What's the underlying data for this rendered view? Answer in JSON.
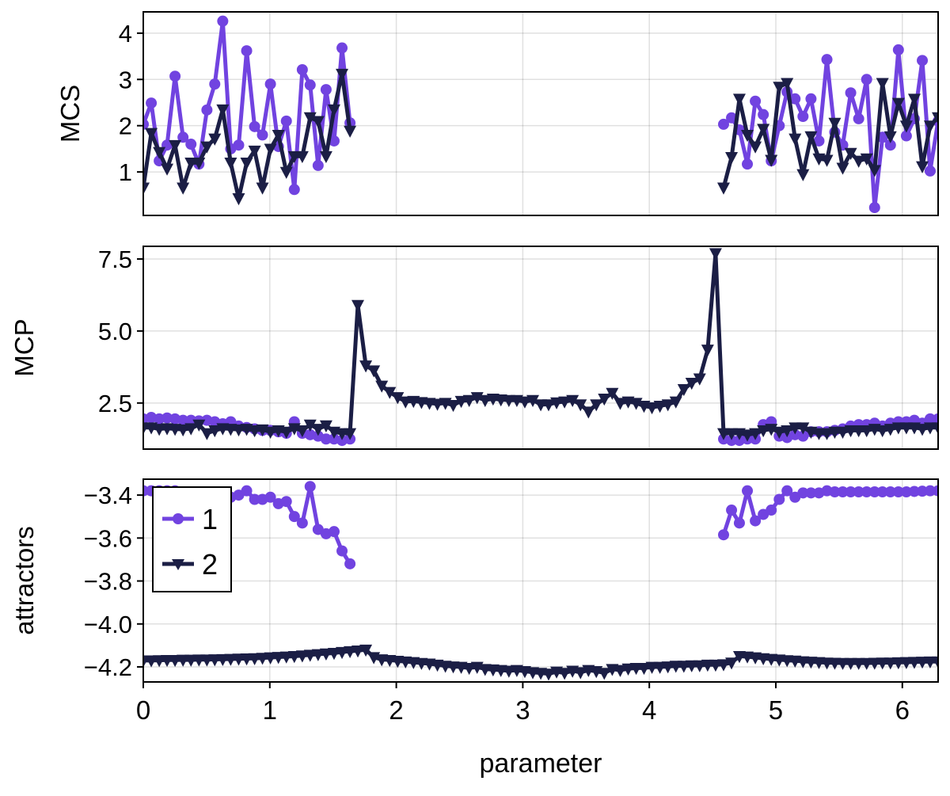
{
  "chart_data": {
    "type": "line",
    "x": [
      0,
      0.063,
      0.126,
      0.188,
      0.251,
      0.314,
      0.377,
      0.44,
      0.503,
      0.565,
      0.628,
      0.691,
      0.754,
      0.817,
      0.88,
      0.942,
      1.005,
      1.068,
      1.131,
      1.194,
      1.257,
      1.319,
      1.382,
      1.445,
      1.508,
      1.571,
      1.634,
      1.696,
      1.759,
      1.822,
      1.885,
      1.948,
      2.011,
      2.073,
      2.136,
      2.199,
      2.262,
      2.325,
      2.388,
      2.45,
      2.513,
      2.576,
      2.639,
      2.702,
      2.765,
      2.827,
      2.89,
      2.953,
      3.016,
      3.079,
      3.142,
      3.204,
      3.267,
      3.33,
      3.393,
      3.456,
      3.519,
      3.581,
      3.644,
      3.707,
      3.77,
      3.833,
      3.896,
      3.958,
      4.021,
      4.084,
      4.147,
      4.21,
      4.273,
      4.335,
      4.398,
      4.461,
      4.524,
      4.587,
      4.65,
      4.712,
      4.775,
      4.838,
      4.901,
      4.964,
      5.027,
      5.089,
      5.152,
      5.215,
      5.278,
      5.341,
      5.404,
      5.466,
      5.529,
      5.592,
      5.655,
      5.718,
      5.781,
      5.843,
      5.906,
      5.969,
      6.032,
      6.095,
      6.158,
      6.22,
      6.283
    ],
    "xlabel": "parameter",
    "xlim": [
      0,
      6.283
    ],
    "xticks": [
      0,
      1,
      2,
      3,
      4,
      5,
      6
    ],
    "xtick_labels": [
      "0",
      "1",
      "2",
      "3",
      "4",
      "5",
      "6"
    ],
    "grid": true,
    "colors": {
      "1": "#7143e0",
      "2": "#1b1e45"
    },
    "legend": {
      "placement": "top-left of bottom panel",
      "entries": [
        {
          "label": "1",
          "marker": "circle",
          "color": "#7143e0"
        },
        {
          "label": "2",
          "marker": "triangle-down",
          "color": "#1b1e45"
        }
      ]
    },
    "panels": [
      {
        "ylabel": "MCS",
        "ylim": [
          0.06,
          4.46
        ],
        "yticks": [
          1,
          2,
          3,
          4
        ],
        "ytick_labels": [
          "1",
          "2",
          "3",
          "4"
        ],
        "series": [
          {
            "name": "1",
            "marker": "circle",
            "y": [
              2.03,
              2.49,
              1.24,
              1.58,
              3.07,
              1.75,
              1.6,
              1.17,
              2.34,
              2.9,
              4.26,
              1.5,
              1.58,
              3.62,
              1.98,
              1.8,
              2.9,
              1.55,
              2.1,
              0.62,
              3.21,
              2.88,
              1.14,
              2.78,
              1.67,
              3.68,
              2.06,
              null,
              null,
              null,
              null,
              null,
              null,
              null,
              null,
              null,
              null,
              null,
              null,
              null,
              null,
              null,
              null,
              null,
              null,
              null,
              null,
              null,
              null,
              null,
              null,
              null,
              null,
              null,
              null,
              null,
              null,
              null,
              null,
              null,
              null,
              null,
              null,
              null,
              null,
              null,
              null,
              null,
              null,
              null,
              null,
              null,
              null,
              2.03,
              2.17,
              1.91,
              1.17,
              2.53,
              2.24,
              1.24,
              2.0,
              2.73,
              2.58,
              2.2,
              2.58,
              1.67,
              3.43,
              1.86,
              1.58,
              2.71,
              2.15,
              3.0,
              0.23,
              1.75,
              1.58,
              3.64,
              1.78,
              2.15,
              3.41,
              1.02,
              2.1
            ]
          },
          {
            "name": "2",
            "marker": "triangle-down",
            "y": [
              0.66,
              1.84,
              1.43,
              1.07,
              1.58,
              0.66,
              1.2,
              1.2,
              1.55,
              1.72,
              2.35,
              1.2,
              0.43,
              1.2,
              1.46,
              0.66,
              1.5,
              1.8,
              1.0,
              1.34,
              1.34,
              2.18,
              2.1,
              1.34,
              2.35,
              3.12,
              1.89,
              null,
              null,
              null,
              null,
              null,
              null,
              null,
              null,
              null,
              null,
              null,
              null,
              null,
              null,
              null,
              null,
              null,
              null,
              null,
              null,
              null,
              null,
              null,
              null,
              null,
              null,
              null,
              null,
              null,
              null,
              null,
              null,
              null,
              null,
              null,
              null,
              null,
              null,
              null,
              null,
              null,
              null,
              null,
              null,
              null,
              null,
              0.66,
              1.32,
              2.58,
              1.8,
              1.55,
              1.93,
              1.26,
              2.84,
              2.92,
              1.72,
              0.95,
              1.77,
              1.29,
              1.26,
              2.06,
              1.09,
              1.41,
              1.24,
              1.29,
              1.04,
              2.92,
              1.77,
              2.49,
              2.0,
              2.58,
              1.12,
              2.0,
              2.18
            ]
          }
        ]
      },
      {
        "ylabel": "MCP",
        "ylim": [
          0.9,
          7.94
        ],
        "yticks": [
          2.5,
          5.0,
          7.5
        ],
        "ytick_labels": [
          "2.5",
          "5.0",
          "7.5"
        ],
        "series": [
          {
            "name": "1",
            "marker": "circle",
            "y": [
              1.95,
              2.0,
              1.95,
              1.98,
              1.95,
              1.9,
              1.9,
              1.88,
              1.9,
              1.85,
              1.78,
              1.85,
              1.7,
              1.65,
              1.6,
              1.55,
              1.55,
              1.5,
              1.45,
              1.85,
              1.45,
              1.4,
              1.35,
              1.25,
              1.25,
              1.2,
              1.25,
              null,
              null,
              null,
              null,
              null,
              null,
              null,
              null,
              null,
              null,
              null,
              null,
              null,
              null,
              null,
              null,
              null,
              null,
              null,
              null,
              null,
              null,
              null,
              null,
              null,
              null,
              null,
              null,
              null,
              null,
              null,
              null,
              null,
              null,
              null,
              null,
              null,
              null,
              null,
              null,
              null,
              null,
              null,
              null,
              null,
              null,
              1.25,
              1.2,
              1.2,
              1.25,
              1.25,
              1.75,
              1.85,
              1.35,
              1.3,
              1.4,
              1.35,
              1.5,
              1.5,
              1.5,
              1.55,
              1.6,
              1.7,
              1.75,
              1.75,
              1.8,
              1.7,
              1.8,
              1.85,
              1.85,
              1.9,
              1.8,
              1.95,
              1.95
            ]
          },
          {
            "name": "2",
            "marker": "triangle-down",
            "y": [
              1.65,
              1.65,
              1.6,
              1.62,
              1.6,
              1.58,
              1.62,
              1.75,
              1.45,
              1.55,
              1.62,
              1.6,
              1.58,
              1.6,
              1.55,
              1.58,
              1.5,
              1.55,
              1.5,
              1.62,
              1.55,
              1.75,
              1.6,
              1.72,
              1.5,
              1.45,
              1.45,
              5.9,
              3.8,
              3.63,
              3.1,
              2.88,
              2.7,
              2.55,
              2.57,
              2.53,
              2.5,
              2.47,
              2.5,
              2.43,
              2.57,
              2.6,
              2.7,
              2.6,
              2.65,
              2.62,
              2.6,
              2.6,
              2.55,
              2.6,
              2.45,
              2.45,
              2.52,
              2.55,
              2.6,
              2.45,
              2.2,
              2.45,
              2.65,
              2.85,
              2.5,
              2.55,
              2.5,
              2.4,
              2.35,
              2.4,
              2.45,
              2.55,
              2.98,
              3.2,
              3.35,
              4.35,
              7.7,
              1.45,
              1.45,
              1.45,
              1.4,
              1.45,
              1.55,
              1.6,
              1.5,
              1.55,
              1.65,
              1.65,
              1.5,
              1.45,
              1.45,
              1.5,
              1.5,
              1.55,
              1.55,
              1.55,
              1.6,
              1.55,
              1.6,
              1.65,
              1.65,
              1.65,
              1.6,
              1.65,
              1.65
            ]
          }
        ]
      },
      {
        "ylabel": "attractors",
        "ylim": [
          -4.27,
          -3.326
        ],
        "yticks": [
          -4.2,
          -4.0,
          -3.8,
          -3.6,
          -3.4
        ],
        "ytick_labels": [
          "−4.2",
          "−4.0",
          "−3.8",
          "−3.6",
          "−3.4"
        ],
        "series": [
          {
            "name": "1",
            "marker": "circle",
            "y": [
              -3.38,
              -3.38,
              -3.38,
              -3.38,
              -3.38,
              -3.39,
              -3.39,
              -3.39,
              -3.39,
              -3.39,
              -3.4,
              -3.41,
              -3.4,
              -3.38,
              -3.42,
              -3.42,
              -3.41,
              -3.44,
              -3.43,
              -3.5,
              -3.53,
              -3.36,
              -3.56,
              -3.58,
              -3.57,
              -3.66,
              -3.72,
              null,
              null,
              null,
              null,
              null,
              null,
              null,
              null,
              null,
              null,
              null,
              null,
              null,
              null,
              null,
              null,
              null,
              null,
              null,
              null,
              null,
              null,
              null,
              null,
              null,
              null,
              null,
              null,
              null,
              null,
              null,
              null,
              null,
              null,
              null,
              null,
              null,
              null,
              null,
              null,
              null,
              null,
              null,
              null,
              null,
              null,
              -3.585,
              -3.47,
              -3.53,
              -3.38,
              -3.52,
              -3.49,
              -3.47,
              -3.42,
              -3.38,
              -3.41,
              -3.39,
              -3.39,
              -3.39,
              -3.38,
              -3.385,
              -3.385,
              -3.385,
              -3.385,
              -3.385,
              -3.385,
              -3.385,
              -3.385,
              -3.385,
              -3.385,
              -3.383,
              -3.382,
              -3.38,
              -3.38
            ]
          },
          {
            "name": "2",
            "marker": "triangle-down",
            "y": [
              -4.17,
              -4.17,
              -4.169,
              -4.168,
              -4.168,
              -4.167,
              -4.167,
              -4.166,
              -4.166,
              -4.165,
              -4.164,
              -4.163,
              -4.162,
              -4.161,
              -4.16,
              -4.158,
              -4.156,
              -4.154,
              -4.152,
              -4.15,
              -4.147,
              -4.144,
              -4.141,
              -4.138,
              -4.135,
              -4.131,
              -4.127,
              -4.124,
              -4.12,
              -4.155,
              -4.165,
              -4.168,
              -4.172,
              -4.175,
              -4.178,
              -4.182,
              -4.185,
              -4.19,
              -4.195,
              -4.198,
              -4.2,
              -4.205,
              -4.2,
              -4.21,
              -4.212,
              -4.215,
              -4.218,
              -4.215,
              -4.22,
              -4.225,
              -4.228,
              -4.232,
              -4.222,
              -4.228,
              -4.218,
              -4.225,
              -4.215,
              -4.22,
              -4.228,
              -4.21,
              -4.215,
              -4.208,
              -4.205,
              -4.205,
              -4.2,
              -4.2,
              -4.198,
              -4.195,
              -4.195,
              -4.193,
              -4.193,
              -4.19,
              -4.19,
              -4.188,
              -4.18,
              -4.15,
              -4.152,
              -4.156,
              -4.16,
              -4.163,
              -4.166,
              -4.169,
              -4.171,
              -4.174,
              -4.176,
              -4.178,
              -4.18,
              -4.181,
              -4.182,
              -4.182,
              -4.182,
              -4.182,
              -4.181,
              -4.18,
              -4.18,
              -4.179,
              -4.178,
              -4.177,
              -4.176,
              -4.175,
              -4.175
            ]
          }
        ]
      }
    ]
  }
}
